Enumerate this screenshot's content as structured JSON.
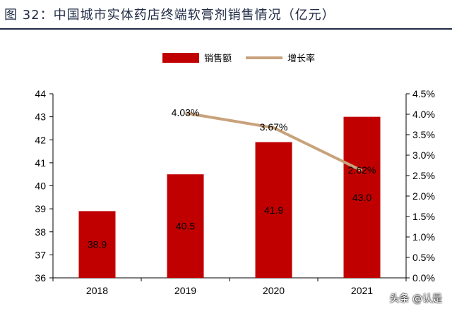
{
  "title": "图 32：中国城市实体药店终端软膏剂销售情况（亿元）",
  "watermark": "头条 @认是",
  "chart_data": {
    "type": "bar+line",
    "categories": [
      "2018",
      "2019",
      "2020",
      "2021"
    ],
    "series": [
      {
        "name": "销售额",
        "type": "bar",
        "axis": "left",
        "values": [
          38.9,
          40.5,
          41.9,
          43.0
        ],
        "labels": [
          "38.9",
          "40.5",
          "41.9",
          "43.0"
        ],
        "color": "#c00000"
      },
      {
        "name": "增长率",
        "type": "line",
        "axis": "right",
        "values": [
          null,
          4.03,
          3.67,
          2.62
        ],
        "labels": [
          "",
          "4.03%",
          "3.67%",
          "2.62%"
        ],
        "color": "#c8a27c"
      }
    ],
    "y_left": {
      "min": 36,
      "max": 44,
      "ticks": [
        "36",
        "37",
        "38",
        "39",
        "40",
        "41",
        "42",
        "43",
        "44"
      ]
    },
    "y_right": {
      "min": 0,
      "max": 4.5,
      "ticks": [
        "0.0%",
        "0.5%",
        "1.0%",
        "1.5%",
        "2.0%",
        "2.5%",
        "3.0%",
        "3.5%",
        "4.0%",
        "4.5%"
      ]
    },
    "legend_position": "top-center",
    "grid": false
  }
}
